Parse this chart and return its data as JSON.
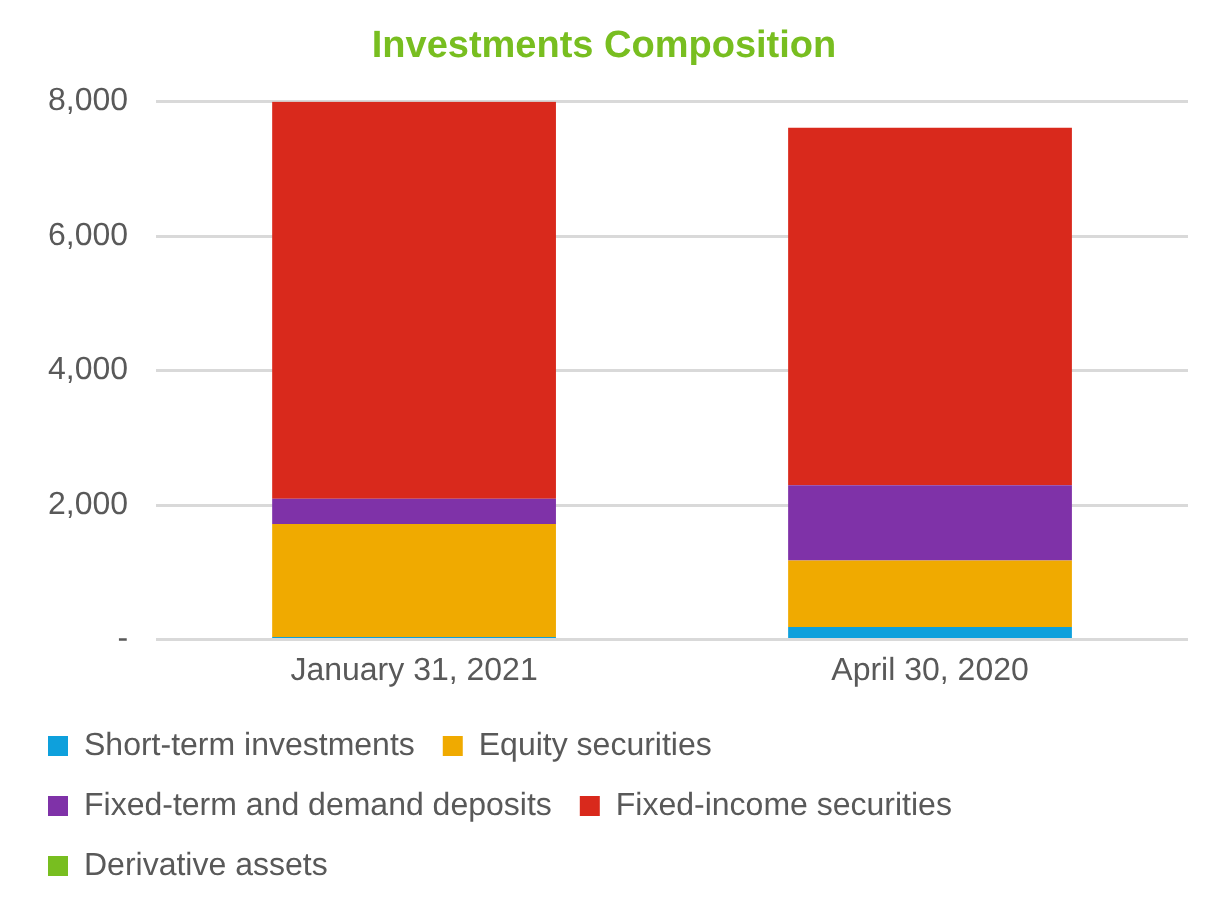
{
  "chart_data": {
    "type": "bar",
    "title": "Investments Composition",
    "stacked": true,
    "categories": [
      "January 31, 2021",
      "April 30, 2020"
    ],
    "series": [
      {
        "name": "Short-term investments",
        "color": "#0ea0dc",
        "values": [
          40,
          187
        ]
      },
      {
        "name": "Equity securities",
        "color": "#f0aa00",
        "values": [
          1680,
          988
        ]
      },
      {
        "name": "Fixed-term and demand deposits",
        "color": "#7f32a8",
        "values": [
          374,
          1121
        ]
      },
      {
        "name": "Fixed-income securities",
        "color": "#d9291c",
        "values": [
          5904,
          5314
        ]
      },
      {
        "name": "Derivative assets",
        "color": "#78be20",
        "values": [
          0,
          0
        ]
      }
    ],
    "ylim": [
      0,
      8000
    ],
    "yticks": [
      {
        "value": 0,
        "label": "-"
      },
      {
        "value": 2000,
        "label": "2,000"
      },
      {
        "value": 4000,
        "label": "4,000"
      },
      {
        "value": 6000,
        "label": "6,000"
      },
      {
        "value": 8000,
        "label": "8,000"
      }
    ],
    "grid": "y",
    "legend": "bottom"
  }
}
